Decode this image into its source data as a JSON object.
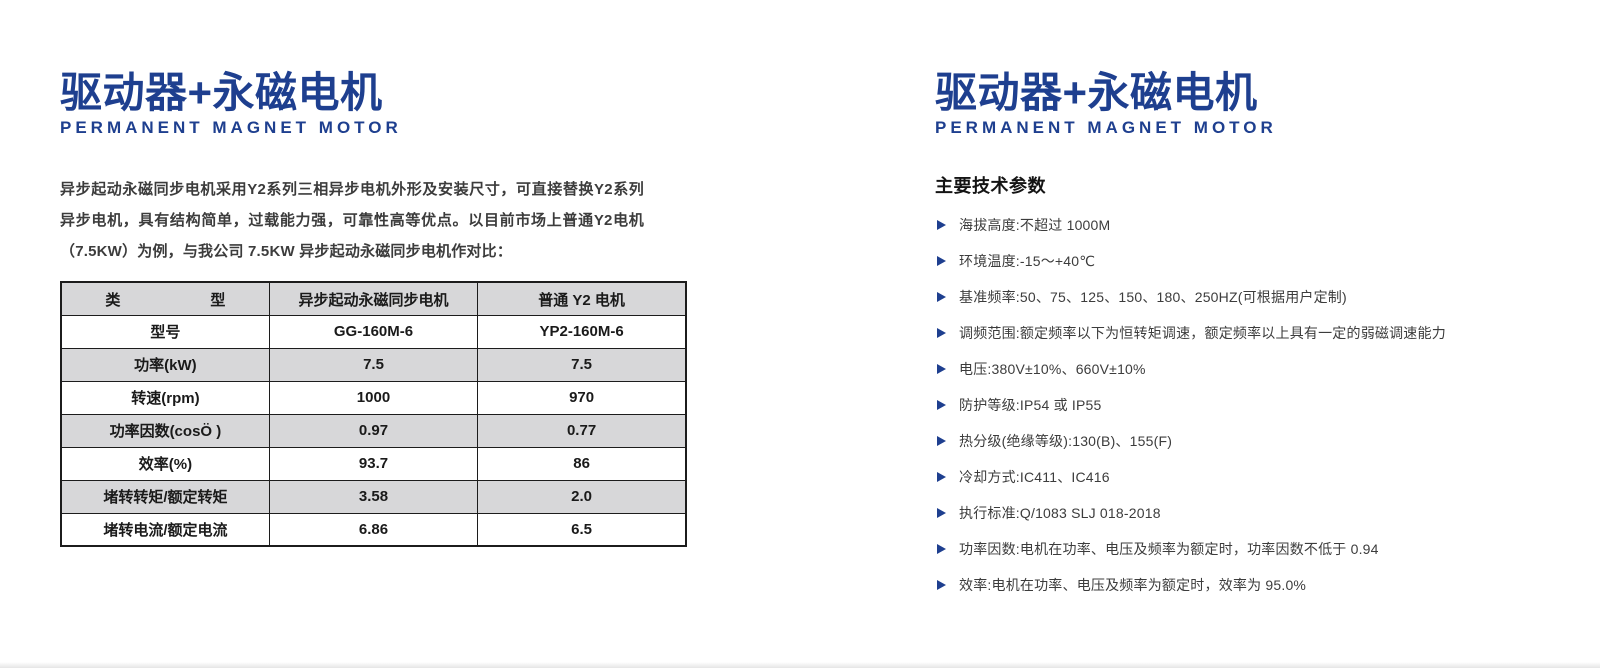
{
  "left": {
    "title": "驱动器+永磁电机",
    "subtitle": "PERMANENT MAGNET MOTOR",
    "intro": "异步起动永磁同步电机采用Y2系列三相异步电机外形及安装尺寸，可直接替换Y2系列异步电机，具有结构简单，过载能力强，可靠性高等优点。以目前市场上普通Y2电机（7.5KW）为例，与我公司 7.5KW 异步起动永磁同步电机作对比：",
    "table": {
      "headers": [
        "类　　　　　　型",
        "异步起动永磁同步电机",
        "普通 Y2 电机"
      ],
      "rows": [
        {
          "label": "型号",
          "pm": "GG-160M-6",
          "y2": "YP2-160M-6"
        },
        {
          "label": "功率(kW)",
          "pm": "7.5",
          "y2": "7.5"
        },
        {
          "label": "转速(rpm)",
          "pm": "1000",
          "y2": "970"
        },
        {
          "label": "功率因数(cosÖ )",
          "pm": "0.97",
          "y2": "0.77"
        },
        {
          "label": "效率(%)",
          "pm": "93.7",
          "y2": "86"
        },
        {
          "label": "堵转转矩/额定转矩",
          "pm": "3.58",
          "y2": "2.0"
        },
        {
          "label": "堵转电流/额定电流",
          "pm": "6.86",
          "y2": "6.5"
        }
      ]
    }
  },
  "right": {
    "title": "驱动器+永磁电机",
    "subtitle": "PERMANENT MAGNET MOTOR",
    "section_heading": "主要技术参数",
    "parameters": [
      "海拔高度:不超过 1000M",
      "环境温度:-15～+40℃",
      "基准频率:50、75、125、150、180、250HZ(可根据用户定制)",
      "调频范围:额定频率以下为恒转矩调速，额定频率以上具有一定的弱磁调速能力",
      "电压:380V±10%、660V±10%",
      "防护等级:IP54 或 IP55",
      "热分级(绝缘等级):130(B)、155(F)",
      "冷却方式:IC411、IC416",
      "执行标准:Q/1083 SLJ 018-2018",
      "功率因数:电机在功率、电压及频率为额定时，功率因数不低于 0.94",
      "效率:电机在功率、电压及频率为额定时，效率为 95.0%"
    ]
  },
  "colors": {
    "accent_navy": "#1e3f8f",
    "table_alt_row": "#d7d7d9",
    "table_border": "#1c1c1c"
  }
}
